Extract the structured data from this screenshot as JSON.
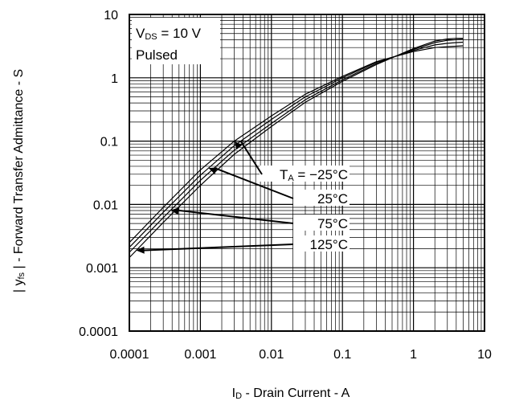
{
  "chart_data": {
    "type": "line",
    "x_scale": "log",
    "y_scale": "log",
    "xlim": [
      0.0001,
      10
    ],
    "ylim": [
      0.0001,
      10
    ],
    "grid": true,
    "xlabel": {
      "main": "I",
      "sub": "D",
      "rest": " - Drain Current - A"
    },
    "ylabel": {
      "prefix": "| y",
      "sub": "fs",
      "rest": " | - Forward Transfer Admittance - S"
    },
    "x_tick_labels": [
      "0.0001",
      "0.001",
      "0.01",
      "0.1",
      "1",
      "10"
    ],
    "y_tick_labels": [
      "0.0001",
      "0.001",
      "0.01",
      "0.1",
      "1",
      "10"
    ],
    "conditions": {
      "line1": {
        "main": "V",
        "sub": "DS",
        "rest": " = 10 V"
      },
      "line2": "Pulsed"
    },
    "series": [
      {
        "name": "T_A = -25°C",
        "label_main": "T",
        "label_sub": "A",
        "label_rest": " = −25°C",
        "x": [
          0.0001,
          0.0003,
          0.001,
          0.003,
          0.01,
          0.03,
          0.1,
          0.3,
          1,
          2,
          3,
          4,
          5
        ],
        "y": [
          0.0025,
          0.009,
          0.035,
          0.1,
          0.25,
          0.55,
          1.05,
          1.8,
          2.6,
          3.0,
          3.1,
          3.15,
          3.2
        ]
      },
      {
        "name": "25°C",
        "label_main": "25°C",
        "x": [
          0.0001,
          0.0003,
          0.001,
          0.003,
          0.01,
          0.03,
          0.1,
          0.3,
          1,
          2,
          3,
          4,
          5
        ],
        "y": [
          0.0021,
          0.0075,
          0.029,
          0.085,
          0.22,
          0.5,
          1.0,
          1.75,
          2.7,
          3.3,
          3.5,
          3.6,
          3.65
        ]
      },
      {
        "name": "75°C",
        "label_main": "75°C",
        "x": [
          0.0001,
          0.0003,
          0.001,
          0.003,
          0.01,
          0.03,
          0.1,
          0.3,
          1,
          2,
          3,
          4,
          5
        ],
        "y": [
          0.00175,
          0.0062,
          0.024,
          0.072,
          0.19,
          0.45,
          0.93,
          1.68,
          2.8,
          3.6,
          3.9,
          4.0,
          4.05
        ]
      },
      {
        "name": "125°C",
        "label_main": "125°C",
        "x": [
          0.0001,
          0.0003,
          0.001,
          0.003,
          0.01,
          0.03,
          0.1,
          0.3,
          1,
          2,
          3,
          4,
          5
        ],
        "y": [
          0.00145,
          0.0052,
          0.02,
          0.062,
          0.17,
          0.41,
          0.88,
          1.62,
          2.9,
          3.8,
          4.1,
          4.2,
          4.2
        ]
      }
    ],
    "annotation_arrow_tips_x": [
      0.003,
      0.0013,
      0.00038,
      0.000125
    ]
  }
}
